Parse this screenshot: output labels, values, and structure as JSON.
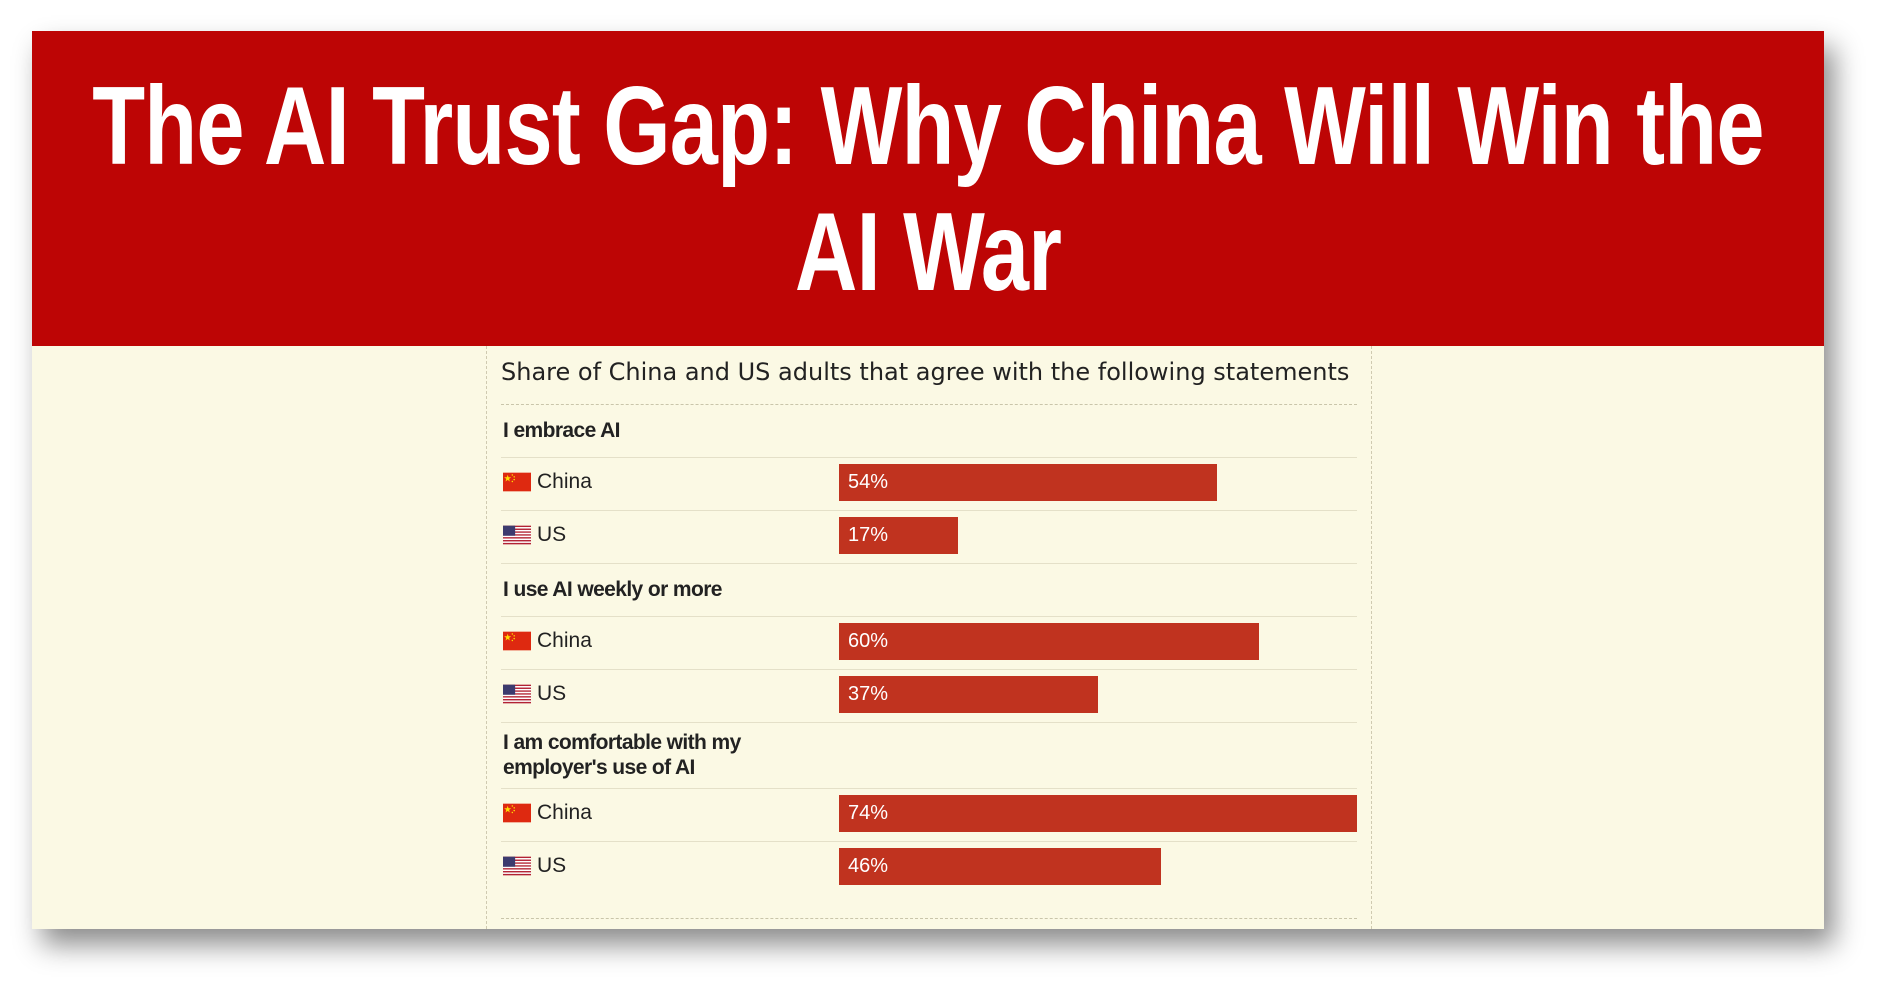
{
  "headline": "The AI Trust Gap: Why China Will Win the AI War",
  "chart_data": {
    "type": "bar",
    "orientation": "horizontal",
    "title": "Share of China and US adults that agree with the following statements",
    "unit": "%",
    "xlim": [
      0,
      74
    ],
    "groups": [
      {
        "label": "I embrace AI",
        "rows": [
          {
            "country": "China",
            "flag": "china-flag-icon",
            "value": 54,
            "label": "54%"
          },
          {
            "country": "US",
            "flag": "us-flag-icon",
            "value": 17,
            "label": "17%"
          }
        ]
      },
      {
        "label": "I use AI weekly or more",
        "rows": [
          {
            "country": "China",
            "flag": "china-flag-icon",
            "value": 60,
            "label": "60%"
          },
          {
            "country": "US",
            "flag": "us-flag-icon",
            "value": 37,
            "label": "37%"
          }
        ]
      },
      {
        "label": "I am comfortable with my employer's use of AI",
        "rows": [
          {
            "country": "China",
            "flag": "china-flag-icon",
            "value": 74,
            "label": "74%"
          },
          {
            "country": "US",
            "flag": "us-flag-icon",
            "value": 46,
            "label": "46%"
          }
        ]
      }
    ],
    "colors": {
      "bar": "#c0331f",
      "banner": "#bd0505",
      "background": "#fbf9e4"
    }
  }
}
